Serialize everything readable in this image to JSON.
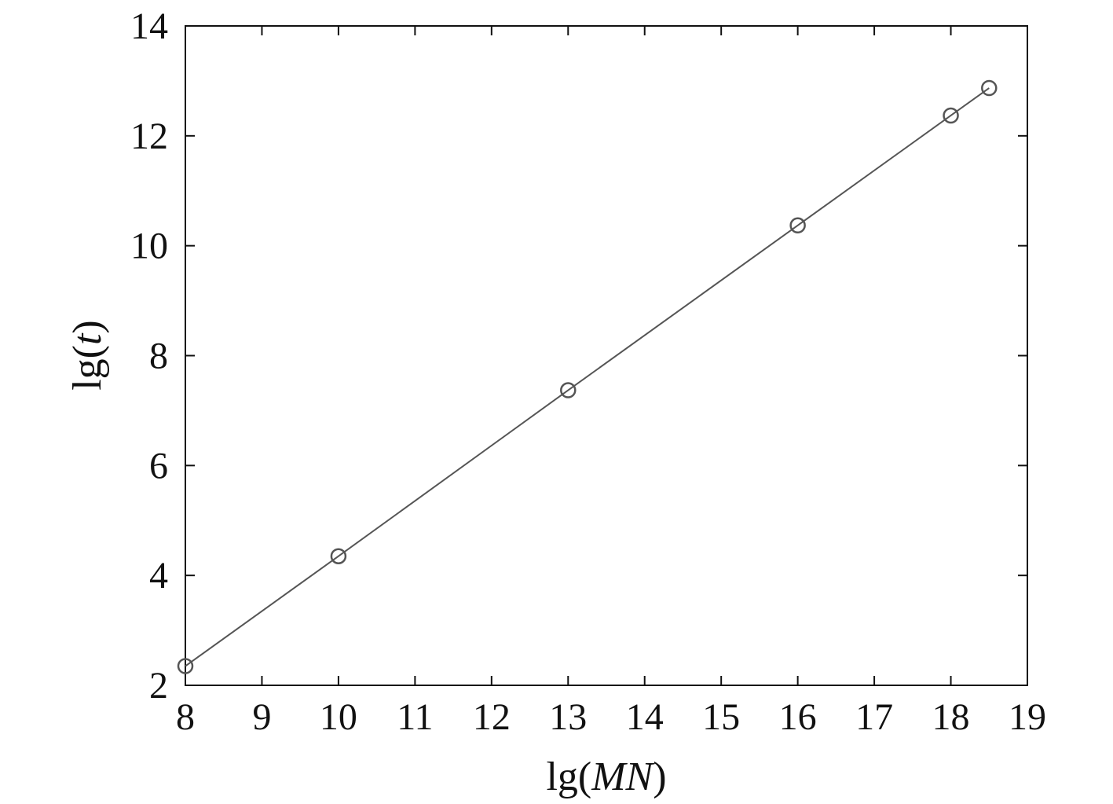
{
  "chart_data": {
    "type": "line",
    "xlabel": {
      "prefix": "lg(",
      "italic": "MN",
      "suffix": ")"
    },
    "ylabel": {
      "prefix": "lg(",
      "italic": "t",
      "suffix": ")"
    },
    "xlim": [
      8,
      19
    ],
    "ylim": [
      2,
      14
    ],
    "xticks": [
      8,
      9,
      10,
      11,
      12,
      13,
      14,
      15,
      16,
      17,
      18,
      19
    ],
    "yticks": [
      2,
      4,
      6,
      8,
      10,
      12,
      14
    ],
    "grid": false,
    "series": [
      {
        "marker": "circle-open",
        "color": "#555555",
        "x": [
          8,
          10,
          13,
          16,
          18,
          18.5
        ],
        "y": [
          2.35,
          4.35,
          7.37,
          10.37,
          12.37,
          12.87
        ]
      }
    ]
  }
}
